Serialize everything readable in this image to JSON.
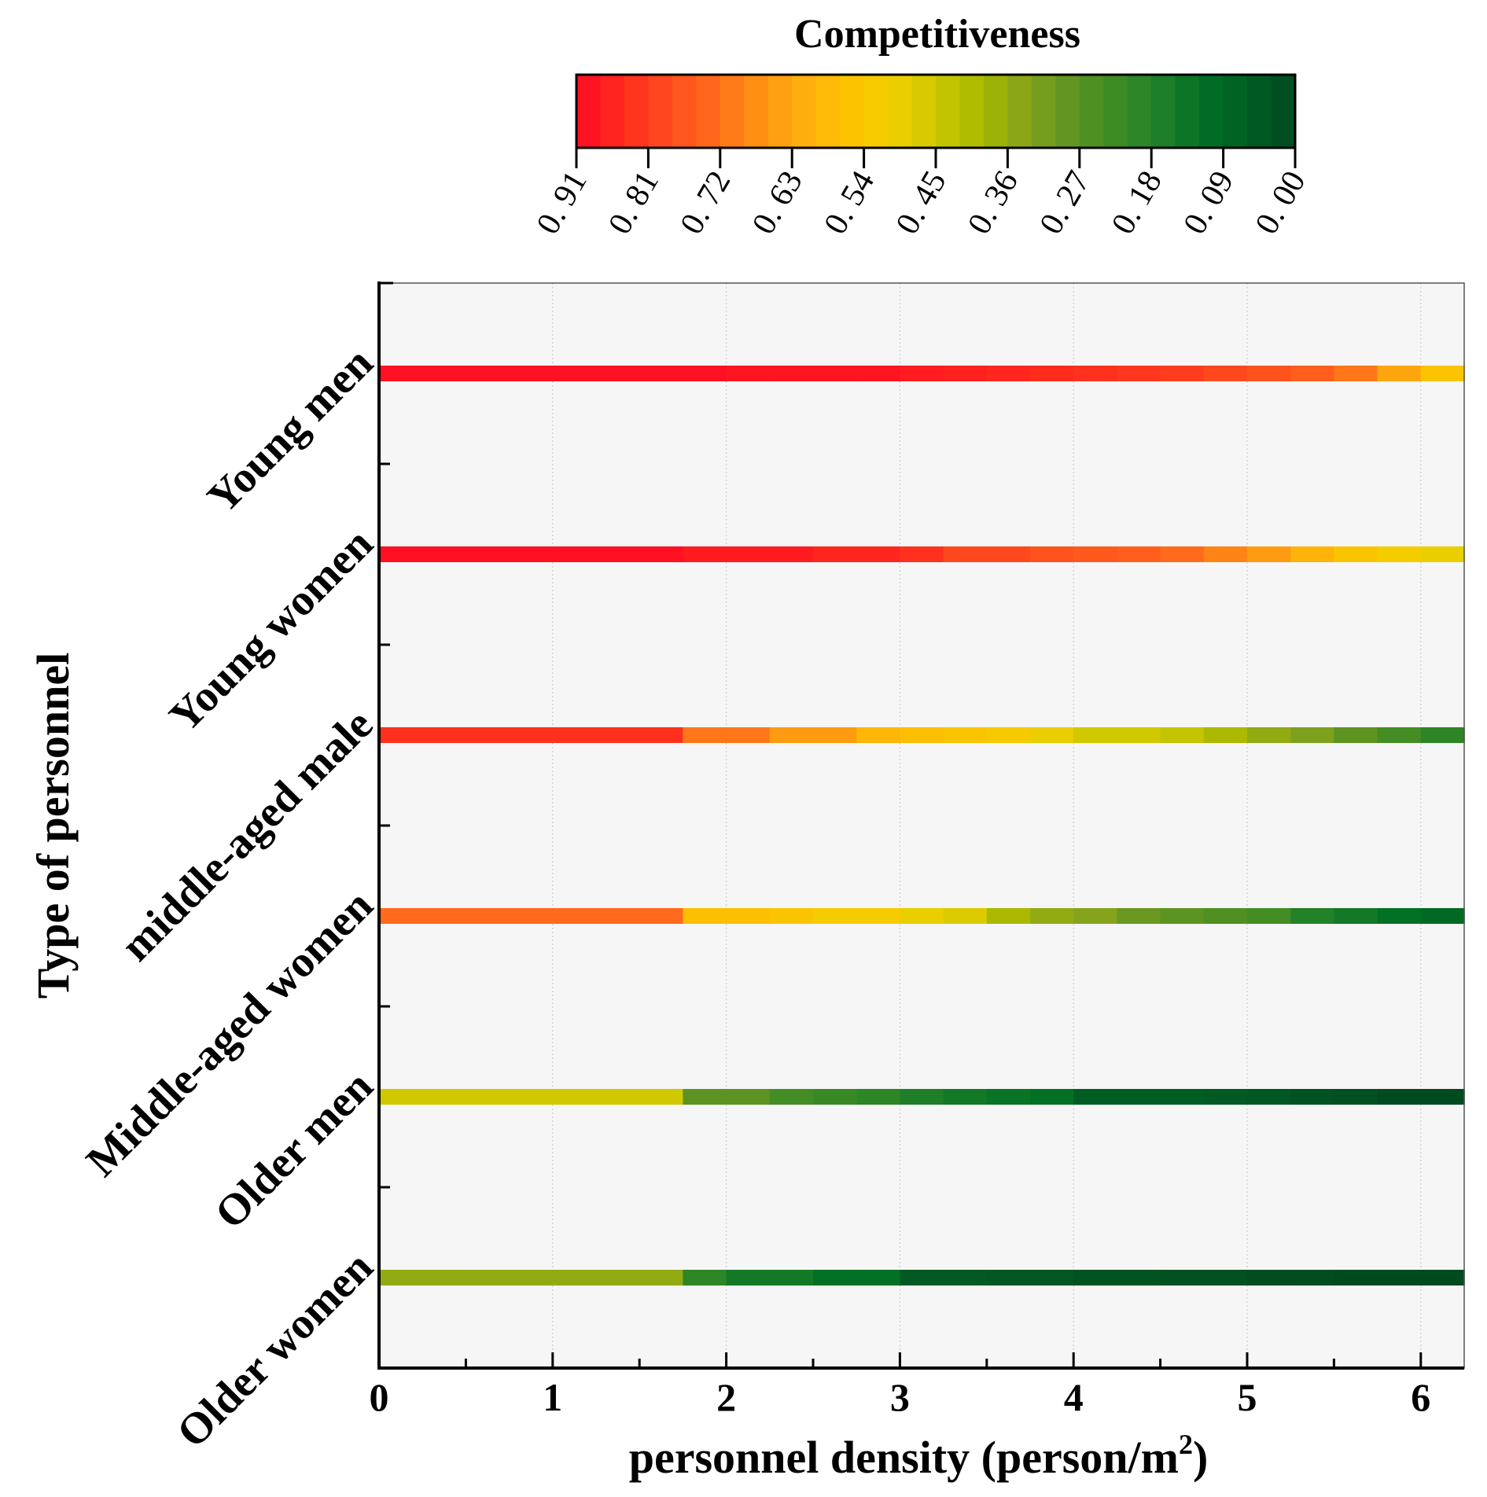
{
  "chart_data": {
    "type": "heatmap",
    "title": "",
    "xlabel": "personnel density (person/m",
    "xlabel_sup": "2",
    "xlabel_close": ")",
    "ylabel": "Type of personnel",
    "xlim": [
      0,
      6.25
    ],
    "x_ticks": [
      0,
      1,
      2,
      3,
      4,
      5,
      6
    ],
    "x_tick_labels": [
      "0",
      "1",
      "2",
      "3",
      "4",
      "5",
      "6"
    ],
    "grid": true,
    "colorbar": {
      "title": "Competitiveness",
      "range": [
        0.91,
        0.0
      ],
      "tick_labels": [
        "0. 91",
        "0. 81",
        "0. 72",
        "0. 63",
        "0. 54",
        "0. 45",
        "0. 36",
        "0. 27",
        "0. 18",
        "0. 09",
        "0. 00"
      ],
      "stops": [
        "#ff0a23",
        "#ff2a1e",
        "#ff4a1e",
        "#ff6a1c",
        "#ff8f12",
        "#ffae0e",
        "#fdc200",
        "#f2cf00",
        "#cdc800",
        "#a9b900",
        "#86a41c",
        "#5f9421",
        "#3c8b25",
        "#1e7f28",
        "#006f25",
        "#005c22",
        "#004a20"
      ],
      "segments": 30
    },
    "x_bins": [
      0,
      0.25,
      0.5,
      0.75,
      1.0,
      1.25,
      1.5,
      1.75,
      2.0,
      2.25,
      2.5,
      2.75,
      3.0,
      3.25,
      3.5,
      3.75,
      4.0,
      4.25,
      4.5,
      4.75,
      5.0,
      5.25,
      5.5,
      5.75,
      6.0,
      6.25
    ],
    "series": [
      {
        "name": "Young men",
        "values": [
          0.9,
          0.9,
          0.9,
          0.9,
          0.9,
          0.9,
          0.9,
          0.9,
          0.89,
          0.89,
          0.89,
          0.89,
          0.88,
          0.87,
          0.86,
          0.85,
          0.84,
          0.83,
          0.82,
          0.8,
          0.78,
          0.76,
          0.72,
          0.64,
          0.56
        ]
      },
      {
        "name": "Young women",
        "values": [
          0.9,
          0.9,
          0.9,
          0.9,
          0.9,
          0.9,
          0.9,
          0.88,
          0.88,
          0.88,
          0.86,
          0.86,
          0.84,
          0.8,
          0.8,
          0.78,
          0.77,
          0.76,
          0.74,
          0.7,
          0.66,
          0.61,
          0.56,
          0.52,
          0.5
        ]
      },
      {
        "name": "middle-aged male",
        "values": [
          0.84,
          0.84,
          0.84,
          0.84,
          0.84,
          0.84,
          0.84,
          0.72,
          0.72,
          0.66,
          0.66,
          0.6,
          0.58,
          0.56,
          0.54,
          0.5,
          0.46,
          0.46,
          0.44,
          0.4,
          0.36,
          0.33,
          0.28,
          0.24,
          0.2
        ]
      },
      {
        "name": "Middle-aged women",
        "values": [
          0.74,
          0.74,
          0.74,
          0.74,
          0.74,
          0.74,
          0.74,
          0.58,
          0.58,
          0.56,
          0.53,
          0.53,
          0.5,
          0.48,
          0.4,
          0.36,
          0.34,
          0.3,
          0.28,
          0.26,
          0.24,
          0.18,
          0.15,
          0.12,
          0.1
        ]
      },
      {
        "name": "Older men",
        "values": [
          0.46,
          0.46,
          0.46,
          0.46,
          0.46,
          0.46,
          0.46,
          0.28,
          0.28,
          0.24,
          0.22,
          0.2,
          0.17,
          0.15,
          0.13,
          0.12,
          0.06,
          0.06,
          0.06,
          0.05,
          0.04,
          0.03,
          0.02,
          0.0,
          0.0
        ]
      },
      {
        "name": "Older women",
        "values": [
          0.36,
          0.36,
          0.36,
          0.36,
          0.36,
          0.36,
          0.36,
          0.2,
          0.15,
          0.15,
          0.12,
          0.12,
          0.05,
          0.05,
          0.04,
          0.04,
          0.03,
          0.03,
          0.02,
          0.02,
          0.01,
          0.01,
          0.0,
          0.0,
          0.0
        ]
      }
    ]
  }
}
